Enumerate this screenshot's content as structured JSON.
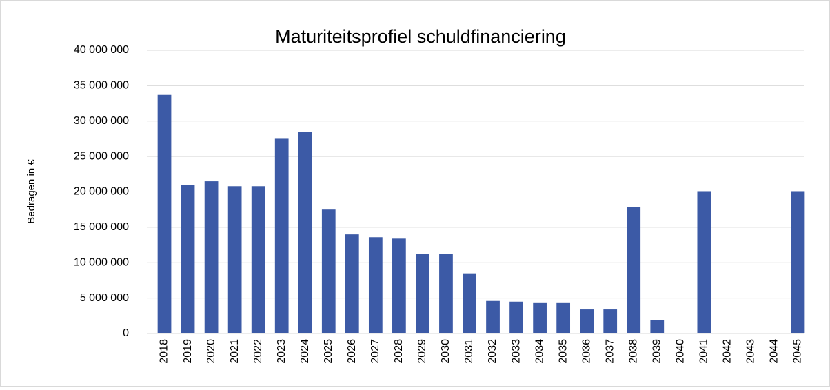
{
  "chart_data": {
    "type": "bar",
    "title": "Maturiteitsprofiel schuldfinanciering",
    "y_label": "Bedragen in €",
    "categories": [
      "2018",
      "2019",
      "2020",
      "2021",
      "2022",
      "2023",
      "2024",
      "2025",
      "2026",
      "2027",
      "2028",
      "2029",
      "2030",
      "2031",
      "2032",
      "2033",
      "2034",
      "2035",
      "2036",
      "2037",
      "2038",
      "2039",
      "2040",
      "2041",
      "2042",
      "2043",
      "2044",
      "2045"
    ],
    "values": [
      33700000,
      21000000,
      21500000,
      20800000,
      20800000,
      27500000,
      28500000,
      17500000,
      14000000,
      13600000,
      13400000,
      11200000,
      11200000,
      8500000,
      4600000,
      4500000,
      4300000,
      4300000,
      3400000,
      3400000,
      17900000,
      1900000,
      0,
      20100000,
      0,
      0,
      0,
      20100000
    ],
    "color": "#3c5aa6",
    "ylim": [
      0,
      40000000
    ],
    "yticks": [
      0,
      {
        "value": 5000000,
        "label": "5 000 000"
      },
      {
        "value": 10000000,
        "label": "10 000 000"
      },
      {
        "value": 15000000,
        "label": "15 000 000"
      },
      {
        "value": 20000000,
        "label": "20 000 000"
      },
      {
        "value": 25000000,
        "label": "25 000 000"
      },
      {
        "value": 30000000,
        "label": "30 000 000"
      },
      {
        "value": 35000000,
        "label": "35 000 000"
      },
      {
        "value": 40000000,
        "label": "40 000 000"
      }
    ],
    "grid": true
  }
}
